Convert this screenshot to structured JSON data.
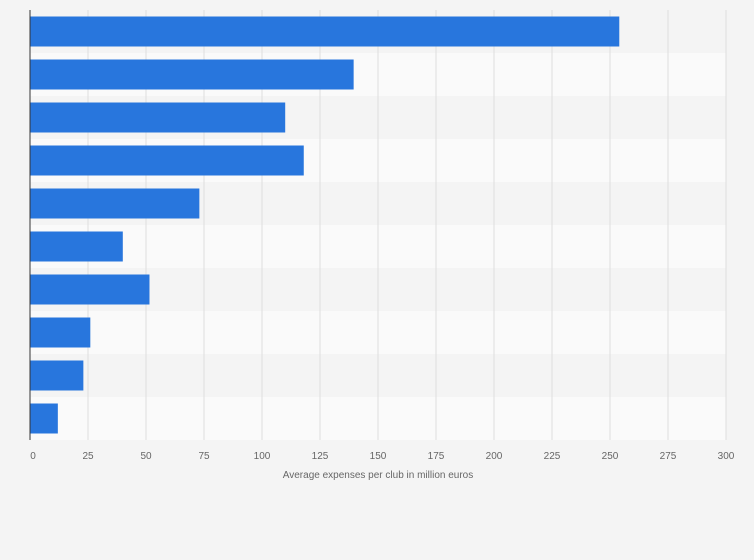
{
  "chart_data": {
    "type": "bar",
    "orientation": "horizontal",
    "title": "",
    "xlabel": "Average expenses per club in million euros",
    "ylabel": "",
    "xlim": [
      0,
      300
    ],
    "ticks": [
      0,
      25,
      50,
      75,
      100,
      125,
      150,
      175,
      200,
      225,
      250,
      275,
      300
    ],
    "values": [
      254,
      139.5,
      110,
      118,
      73,
      40,
      51.5,
      26,
      23,
      12
    ],
    "grid": true,
    "legend": "none",
    "colors": {
      "bar": "#2876dd",
      "band_dark": "#f4f4f4",
      "band_light": "#fafafa",
      "grid": "#dedede",
      "axis": "#333333",
      "text": "#666666"
    }
  }
}
